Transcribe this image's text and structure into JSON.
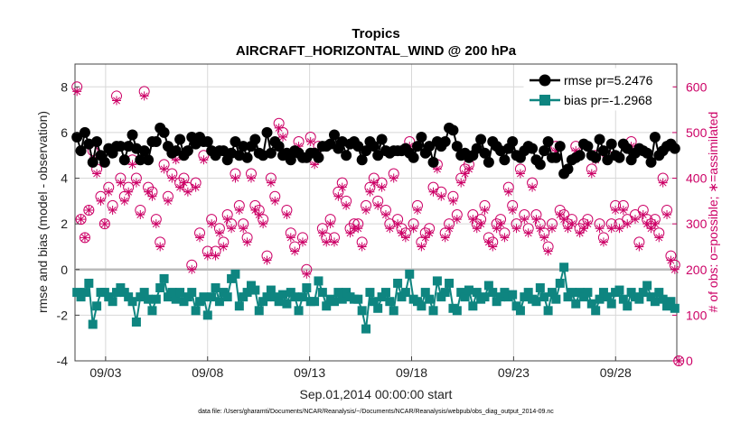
{
  "chart_data": {
    "type": "line",
    "title": "Tropics",
    "subtitle": "AIRCRAFT_HORIZONTAL_WIND @ 200 hPa",
    "xlabel": "Sep.01,2014 00:00:00 start",
    "ylabel": "rmse and bias (model - observation)",
    "ylabel_right": "# of obs: o=possible; ∗=assimilated",
    "footnote": "data file: /Users/gharamti/Documents/NCAR/Reanalysis/~/Documents/NCAR/Reanalysis/webpub/obs_diag_output_2014-09.nc",
    "x_ticks": [
      "09/03",
      "09/08",
      "09/13",
      "09/18",
      "09/23",
      "09/28"
    ],
    "x_tick_days": [
      3,
      8,
      13,
      18,
      23,
      28
    ],
    "xlim_days": [
      1.5,
      31.0
    ],
    "y_ticks": [
      "-4",
      "-2",
      "0",
      "2",
      "4",
      "6",
      "8"
    ],
    "ylim": [
      -4,
      9
    ],
    "y_right_ticks": [
      "0",
      "100",
      "200",
      "300",
      "400",
      "500",
      "600"
    ],
    "ylim_right": [
      0,
      650
    ],
    "grid": true,
    "legend_position": "top-right",
    "series": [
      {
        "name": "rmse pr=5.2476",
        "color": "#000000",
        "values": [
          5.8,
          5.2,
          6.0,
          5.5,
          4.7,
          5.6,
          5.0,
          4.7,
          5.3,
          5.1,
          5.4,
          5.4,
          4.8,
          5.4,
          5.9,
          5.3,
          4.8,
          5.2,
          4.8,
          5.6,
          5.6,
          6.2,
          6.0,
          5.4,
          5.1,
          5.2,
          5.7,
          5.0,
          5.2,
          5.8,
          5.5,
          5.8,
          5.6,
          5.6,
          5.2,
          5.0,
          5.2,
          5.2,
          4.8,
          5.1,
          5.6,
          5.0,
          5.4,
          4.9,
          5.4,
          5.7,
          5.1,
          5.0,
          6.0,
          5.1,
          5.6,
          5.4,
          5.0,
          5.1,
          4.8,
          5.2,
          5.1,
          4.9,
          4.9,
          5.1,
          5.1,
          4.9,
          5.4,
          5.4,
          5.5,
          5.9,
          5.3,
          5.6,
          5.0,
          5.5,
          5.6,
          5.4,
          4.8,
          5.2,
          5.6,
          5.4,
          5.0,
          5.7,
          5.2,
          5.1,
          5.2,
          5.2,
          5.2,
          5.3,
          5.1,
          4.9,
          5.4,
          5.8,
          5.1,
          5.4,
          4.7,
          5.6,
          5.4,
          5.6,
          6.2,
          6.1,
          5.4,
          5.0,
          5.1,
          4.9,
          5.0,
          5.3,
          5.7,
          5.1,
          4.7,
          5.6,
          5.4,
          5.2,
          4.8,
          5.3,
          5.6,
          5.0,
          4.9,
          5.2,
          5.4,
          5.3,
          4.8,
          4.6,
          5.2,
          5.6,
          4.9,
          4.9,
          5.4,
          4.2,
          4.4,
          4.8,
          4.9,
          5.0,
          5.5,
          5.4,
          5.0,
          4.9,
          5.7,
          5.2,
          4.8,
          5.5,
          5.0,
          4.9,
          5.5,
          5.3,
          4.8,
          5.1,
          5.3,
          5.2,
          5.1,
          4.7,
          5.8,
          5.0,
          5.2,
          5.4,
          5.5,
          5.3
        ]
      },
      {
        "name": "bias pr=-1.2968",
        "color": "#0e8580",
        "values": [
          -1.0,
          -1.2,
          -1.0,
          -0.6,
          -2.4,
          -1.6,
          -1.0,
          -1.0,
          -1.2,
          -1.4,
          -1.0,
          -0.8,
          -1.0,
          -1.2,
          -1.4,
          -2.3,
          -1.2,
          -1.0,
          -1.3,
          -1.8,
          -1.3,
          -0.8,
          -0.4,
          -1.2,
          -1.0,
          -1.3,
          -1.0,
          -1.4,
          -1.2,
          -1.0,
          -1.8,
          -1.4,
          -1.2,
          -2.0,
          -1.2,
          -0.8,
          -1.4,
          -1.0,
          -1.2,
          -0.4,
          -0.2,
          -1.6,
          -1.2,
          -1.0,
          -0.7,
          -0.9,
          -1.8,
          -1.4,
          -1.2,
          -0.9,
          -1.2,
          -1.4,
          -1.1,
          -1.5,
          -1.0,
          -1.2,
          -1.8,
          -1.2,
          -0.8,
          -1.4,
          -1.4,
          -0.5,
          -1.0,
          -1.6,
          -1.3,
          -1.4,
          -1.0,
          -1.3,
          -1.0,
          -1.2,
          -1.3,
          -1.3,
          -1.8,
          -2.6,
          -1.0,
          -1.4,
          -1.7,
          -1.2,
          -1.0,
          -1.4,
          -1.8,
          -0.6,
          -1.2,
          -1.0,
          -0.2,
          -1.3,
          -1.4,
          -1.6,
          -1.0,
          -1.3,
          -1.8,
          -0.5,
          -1.2,
          -1.0,
          -0.6,
          -1.7,
          -1.8,
          -1.0,
          -1.2,
          -0.9,
          -1.6,
          -1.0,
          -1.3,
          -1.2,
          -0.7,
          -1.0,
          -1.4,
          -1.2,
          -1.0,
          -1.2,
          -1.1,
          -1.6,
          -1.8,
          -1.2,
          -1.0,
          -1.3,
          -1.4,
          -0.8,
          -1.2,
          -1.8,
          -1.0,
          -1.3,
          -0.6,
          0.1,
          -1.2,
          -1.0,
          -1.5,
          -1.0,
          -1.2,
          -1.0,
          -1.5,
          -1.8,
          -1.3,
          -1.0,
          -1.2,
          -1.5,
          -1.0,
          -0.9,
          -1.3,
          -1.6,
          -1.0,
          -1.2,
          -1.3,
          -1.0,
          -0.7,
          -1.2,
          -1.4,
          -1.0,
          -1.3,
          -1.6,
          -1.4,
          -1.7
        ]
      },
      {
        "name": "possible",
        "color": "#cc0066",
        "marker": "circle",
        "values": [
          600,
          310,
          270,
          330,
          460,
          420,
          360,
          300,
          380,
          340,
          580,
          400,
          360,
          380,
          440,
          400,
          330,
          590,
          380,
          370,
          310,
          260,
          430,
          360,
          410,
          450,
          390,
          400,
          380,
          210,
          390,
          280,
          450,
          240,
          310,
          240,
          290,
          260,
          320,
          300,
          410,
          340,
          300,
          270,
          410,
          340,
          330,
          310,
          230,
          400,
          360,
          520,
          500,
          330,
          280,
          250,
          480,
          270,
          200,
          490,
          440,
          470,
          290,
          270,
          310,
          270,
          370,
          390,
          350,
          290,
          300,
          300,
          260,
          340,
          380,
          400,
          350,
          390,
          330,
          300,
          410,
          310,
          290,
          280,
          480,
          300,
          340,
          260,
          280,
          290,
          380,
          430,
          370,
          280,
          300,
          360,
          320,
          400,
          420,
          430,
          320,
          300,
          310,
          340,
          270,
          260,
          300,
          310,
          280,
          380,
          340,
          300,
          420,
          320,
          290,
          390,
          320,
          300,
          280,
          250,
          300,
          470,
          330,
          320,
          300,
          310,
          470,
          290,
          300,
          310,
          420,
          450,
          300,
          270,
          450,
          300,
          340,
          300,
          340,
          310,
          480,
          320,
          260,
          330,
          310,
          300,
          310,
          280,
          400,
          330,
          230,
          210,
          0
        ]
      },
      {
        "name": "assimilated",
        "color": "#cc0066",
        "marker": "star",
        "values": [
          590,
          310,
          270,
          330,
          440,
          410,
          350,
          300,
          370,
          330,
          570,
          390,
          350,
          370,
          430,
          390,
          320,
          580,
          370,
          360,
          300,
          250,
          420,
          350,
          400,
          440,
          380,
          390,
          370,
          200,
          380,
          270,
          440,
          230,
          300,
          230,
          280,
          250,
          310,
          290,
          400,
          330,
          290,
          260,
          400,
          330,
          320,
          300,
          220,
          390,
          350,
          510,
          490,
          320,
          270,
          240,
          470,
          260,
          190,
          480,
          430,
          460,
          280,
          260,
          300,
          260,
          360,
          380,
          340,
          280,
          290,
          290,
          250,
          330,
          370,
          390,
          340,
          380,
          320,
          290,
          400,
          300,
          280,
          270,
          470,
          290,
          330,
          250,
          270,
          280,
          370,
          420,
          360,
          270,
          290,
          350,
          310,
          390,
          410,
          420,
          310,
          290,
          300,
          330,
          260,
          250,
          290,
          300,
          270,
          370,
          330,
          290,
          410,
          310,
          280,
          380,
          310,
          290,
          270,
          240,
          290,
          460,
          320,
          310,
          290,
          300,
          460,
          280,
          290,
          300,
          410,
          440,
          290,
          260,
          440,
          290,
          330,
          290,
          330,
          300,
          470,
          310,
          250,
          320,
          300,
          290,
          300,
          270,
          390,
          320,
          220,
          200,
          0
        ]
      }
    ]
  }
}
